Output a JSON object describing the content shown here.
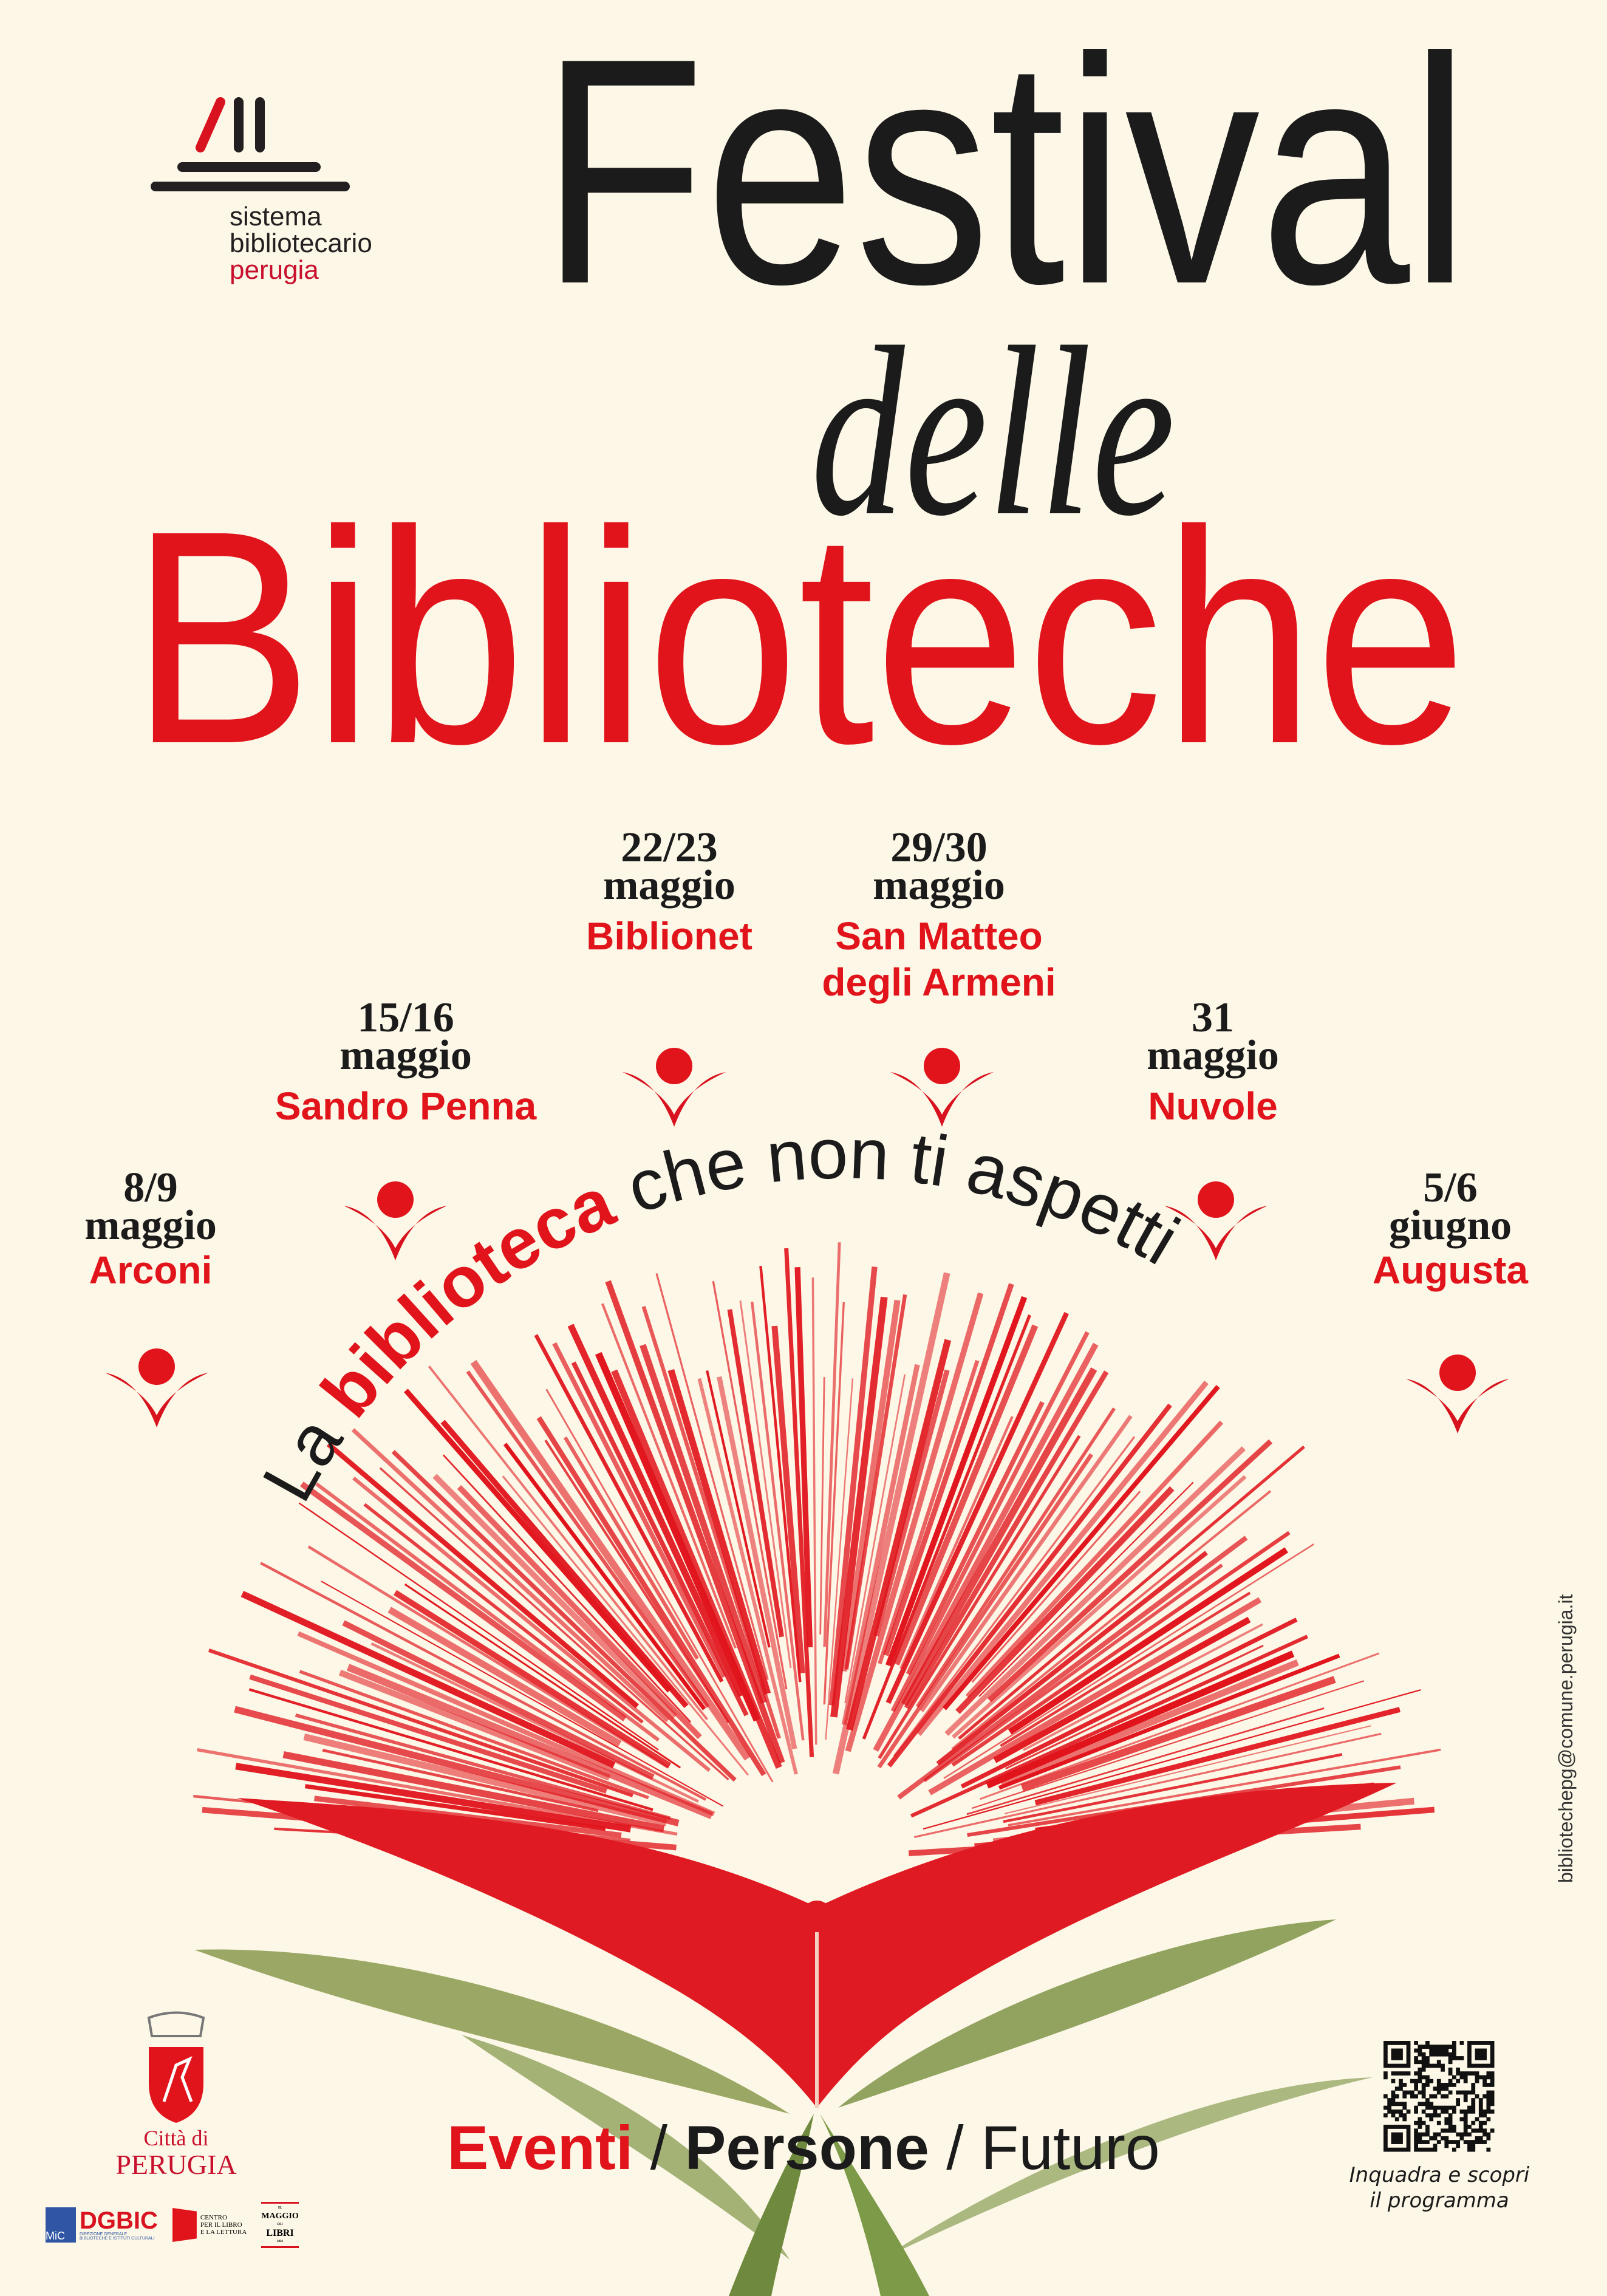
{
  "organizer_logo": {
    "line1": "sistema",
    "line2": "bibliotecario",
    "line3": "perugia"
  },
  "title": {
    "line1": "Festival",
    "line2": "delle",
    "line3": "Biblioteche"
  },
  "subtitle": {
    "part1": "La ",
    "highlight": "biblioteca",
    "part2": " che non ti aspetti"
  },
  "events": [
    {
      "date": "8/9",
      "month": "maggio",
      "venue": "Arconi"
    },
    {
      "date": "15/16",
      "month": "maggio",
      "venue": "Sandro Penna"
    },
    {
      "date": "22/23",
      "month": "maggio",
      "venue": "Biblionet"
    },
    {
      "date": "29/30",
      "month": "maggio",
      "venue": "San Matteo degli Armeni"
    },
    {
      "date": "31",
      "month": "maggio",
      "venue": "Nuvole"
    },
    {
      "date": "5/6",
      "month": "giugno",
      "venue": "Augusta"
    }
  ],
  "tagline": {
    "word1": "Eventi",
    "sep1": " / ",
    "word2": "Persone",
    "sep2": " / ",
    "word3": "Futuro"
  },
  "city_logo": {
    "line1": "Città di",
    "line2": "PERUGIA"
  },
  "partners": {
    "dgbic": "DGBIC",
    "dgbic_sub1": "DIREZIONE GENERALE",
    "dgbic_sub2": "BIBLIOTECHE E ISTITUTI CULTURALI",
    "mic": "MiC",
    "cepell1": "CENTRO",
    "cepell2": "PER IL LIBRO",
    "cepell3": "E LA LETTURA",
    "maggio1": "IL",
    "maggio2": "MAGGIO",
    "maggio3": "DEI",
    "maggio4": "LIBRI",
    "maggio_year": "2026"
  },
  "qr": {
    "caption1": "Inquadra e scopri",
    "caption2": "il programma"
  },
  "contact_email": "bibliotechepg@comune.perugia.it",
  "colors": {
    "background": "#fcf7e6",
    "red": "#e1141c",
    "dark": "#1b1b1b",
    "leaf": "#7f9448"
  }
}
